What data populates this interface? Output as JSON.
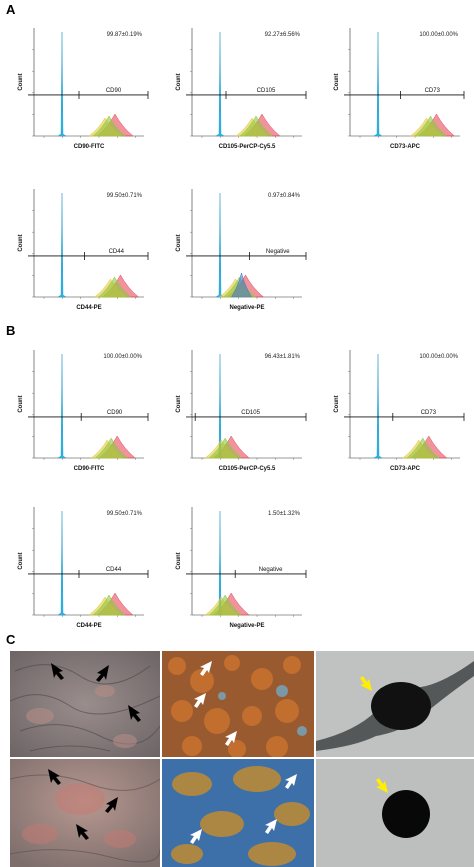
{
  "panels": [
    {
      "letter": "A"
    },
    {
      "letter": "B"
    },
    {
      "letter": "C"
    }
  ],
  "chart_data": [
    {
      "type": "histogram",
      "panel": "A",
      "xlabel": "CD90-FITC",
      "ylabel": "Count",
      "stat": "99.87±0.19%",
      "gate_label": "CD90",
      "peak_pos": 0.5
    },
    {
      "type": "histogram",
      "panel": "A",
      "xlabel": "CD105-PerCP-Cy5.5",
      "ylabel": "Count",
      "stat": "92.27±6.56%",
      "gate_label": "CD105",
      "peak_pos": 0.4
    },
    {
      "type": "histogram",
      "panel": "A",
      "xlabel": "CD73-APC",
      "ylabel": "Count",
      "stat": "100.00±0.00%",
      "gate_label": "CD73",
      "peak_pos": 0.55
    },
    {
      "type": "histogram",
      "panel": "A",
      "xlabel": "CD44-PE",
      "ylabel": "Count",
      "stat": "99.50±0.71%",
      "gate_label": "CD44",
      "peak_pos": 0.55
    },
    {
      "type": "histogram",
      "panel": "A",
      "xlabel": "Negative-PE",
      "ylabel": "Count",
      "stat": "0.97±0.84%",
      "gate_label": "Negative",
      "peak_pos": 0.25
    },
    {
      "type": "histogram",
      "panel": "B",
      "xlabel": "CD90-FITC",
      "ylabel": "Count",
      "stat": "100.00±0.00%",
      "gate_label": "CD90",
      "peak_pos": 0.52
    },
    {
      "type": "histogram",
      "panel": "B",
      "xlabel": "CD105-PerCP-Cy5.5",
      "ylabel": "Count",
      "stat": "96.43±1.81%",
      "gate_label": "CD105",
      "peak_pos": 0.12
    },
    {
      "type": "histogram",
      "panel": "B",
      "xlabel": "CD73-APC",
      "ylabel": "Count",
      "stat": "100.00±0.00%",
      "gate_label": "CD73",
      "peak_pos": 0.48
    },
    {
      "type": "histogram",
      "panel": "B",
      "xlabel": "CD44-PE",
      "ylabel": "Count",
      "stat": "99.50±0.71%",
      "gate_label": "CD44",
      "peak_pos": 0.5
    },
    {
      "type": "histogram",
      "panel": "B",
      "xlabel": "Negative-PE",
      "ylabel": "Count",
      "stat": "1.50±1.32%",
      "gate_label": "Negative",
      "peak_pos": 0.12
    }
  ],
  "colors": {
    "control": "#29b6e6",
    "sample_green": "#8cc83c",
    "sample_red": "#e64b5a",
    "sample_yellow": "#e6c83c",
    "sample_blue": "#4678c8"
  },
  "photos": [
    {
      "name": "osteogenic-photo-1",
      "arrow_color": "#000000"
    },
    {
      "name": "adipogenic-photo-1",
      "arrow_color": "#ffffff"
    },
    {
      "name": "chondrogenic-photo-1",
      "arrow_color": "#ffee00"
    },
    {
      "name": "osteogenic-photo-2",
      "arrow_color": "#000000"
    },
    {
      "name": "adipogenic-photo-2",
      "arrow_color": "#ffffff"
    },
    {
      "name": "chondrogenic-photo-2",
      "arrow_color": "#ffee00"
    }
  ]
}
